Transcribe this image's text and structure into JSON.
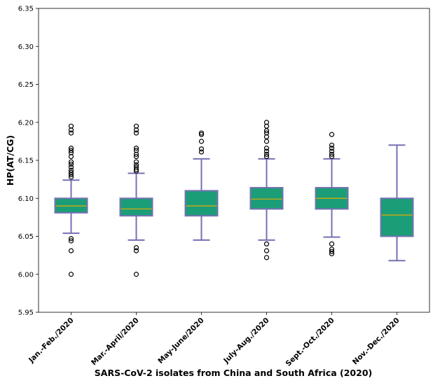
{
  "chart_data": {
    "type": "box",
    "title": "",
    "xlabel": "SARS-CoV-2 isolates from China and South Africa (2020)",
    "ylabel": "HP(AT/CG)",
    "ylim": [
      5.95,
      6.35
    ],
    "yticks": [
      "5.95",
      "6.00",
      "6.05",
      "6.10",
      "6.15",
      "6.20",
      "6.25",
      "6.30",
      "6.35"
    ],
    "grid": false,
    "colors": {
      "box_fill": "#1b9e77",
      "box_edge": "#7570b3",
      "median": "#e6ab02",
      "flier_edge": "#000000"
    },
    "categories": [
      "Jan.-Feb./2020",
      "Mar.-April/2020",
      "May-June/2020",
      "July-Aug./2020",
      "Sept.-Oct./2020",
      "Nov.-Dec./2020"
    ],
    "boxes": [
      {
        "whislo": 6.054,
        "q1": 6.081,
        "med": 6.09,
        "q3": 6.1,
        "whishi": 6.124,
        "fliers": [
          6.0,
          6.031,
          6.044,
          6.047,
          6.128,
          6.131,
          6.134,
          6.137,
          6.141,
          6.145,
          6.148,
          6.155,
          6.16,
          6.163,
          6.166,
          6.186,
          6.19,
          6.195
        ]
      },
      {
        "whislo": 6.045,
        "q1": 6.077,
        "med": 6.086,
        "q3": 6.1,
        "whishi": 6.133,
        "fliers": [
          6.0,
          6.031,
          6.035,
          6.136,
          6.138,
          6.141,
          6.144,
          6.148,
          6.155,
          6.158,
          6.163,
          6.166,
          6.186,
          6.19,
          6.195
        ]
      },
      {
        "whislo": 6.045,
        "q1": 6.077,
        "med": 6.09,
        "q3": 6.11,
        "whishi": 6.152,
        "fliers": [
          6.161,
          6.165,
          6.175,
          6.184,
          6.186
        ]
      },
      {
        "whislo": 6.045,
        "q1": 6.086,
        "med": 6.099,
        "q3": 6.114,
        "whishi": 6.152,
        "fliers": [
          6.022,
          6.031,
          6.04,
          6.155,
          6.158,
          6.162,
          6.166,
          6.175,
          6.181,
          6.186,
          6.189,
          6.195,
          6.2
        ]
      },
      {
        "whislo": 6.049,
        "q1": 6.086,
        "med": 6.1,
        "q3": 6.114,
        "whishi": 6.152,
        "fliers": [
          6.027,
          6.03,
          6.033,
          6.04,
          6.155,
          6.158,
          6.162,
          6.166,
          6.17,
          6.184
        ]
      },
      {
        "whislo": 6.018,
        "q1": 6.05,
        "med": 6.078,
        "q3": 6.1,
        "whishi": 6.17,
        "fliers": []
      }
    ]
  }
}
